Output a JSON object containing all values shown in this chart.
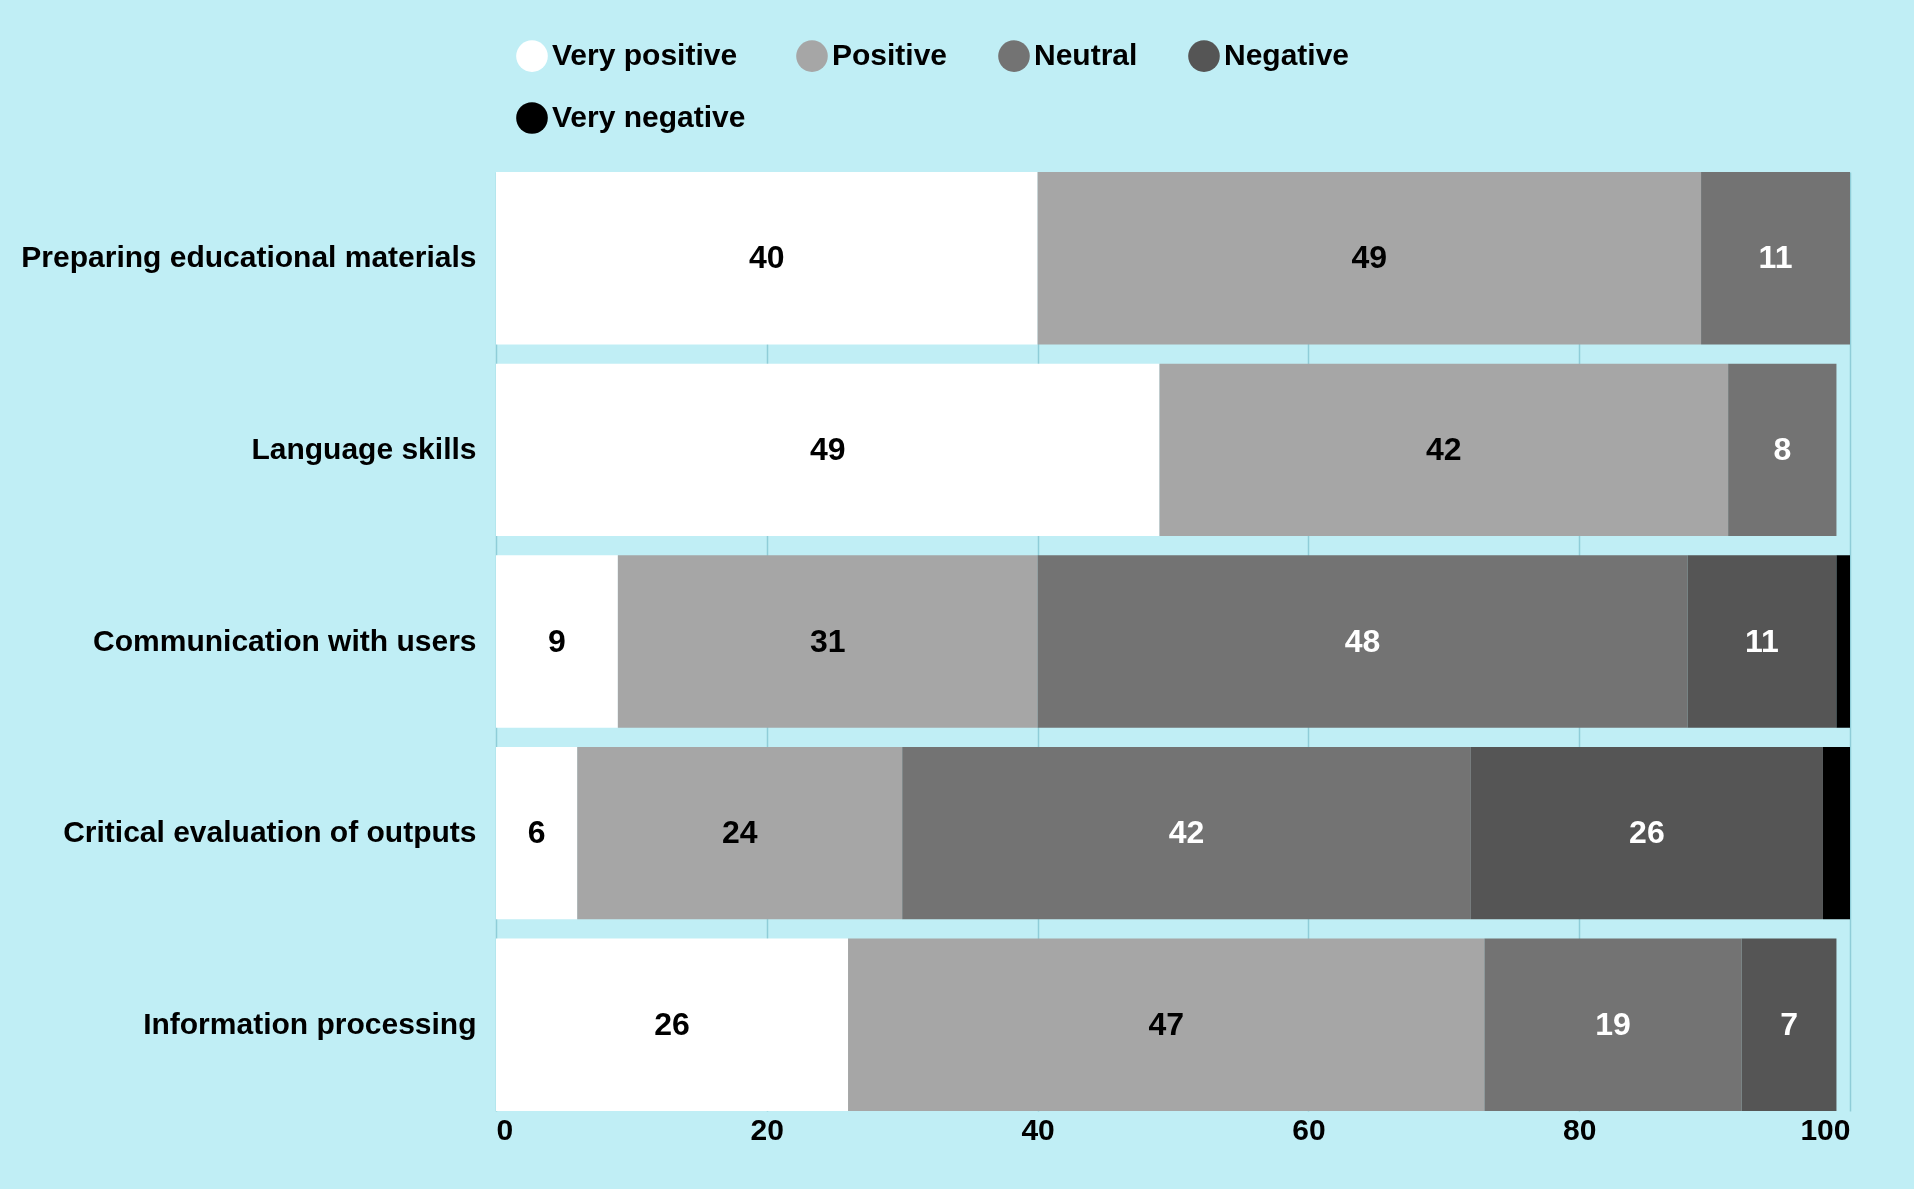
{
  "chart_data": {
    "type": "bar",
    "orientation": "horizontal",
    "stacked": true,
    "categories": [
      "Preparing educational materials",
      "Language skills",
      "Communication with users",
      "Critical evaluation of outputs",
      "Information processing"
    ],
    "series": [
      {
        "name": "Very positive",
        "color": "#ffffff",
        "values": [
          40,
          49,
          9,
          6,
          26
        ],
        "value_labels": [
          "40",
          "49",
          "9",
          "6",
          "26"
        ]
      },
      {
        "name": "Positive",
        "color": "#a6a6a6",
        "values": [
          49,
          42,
          31,
          24,
          47
        ],
        "value_labels": [
          "49",
          "42",
          "31",
          "24",
          "47"
        ]
      },
      {
        "name": "Neutral",
        "color": "#737373",
        "values": [
          11,
          8,
          48,
          42,
          19
        ],
        "value_labels": [
          "11",
          "8",
          "48",
          "42",
          "19"
        ]
      },
      {
        "name": "Negative",
        "color": "#555555",
        "values": [
          null,
          null,
          11,
          26,
          7
        ],
        "value_labels": [
          null,
          null,
          "11",
          "26",
          "7"
        ]
      },
      {
        "name": "Very negative",
        "color": "#000000",
        "values": [
          null,
          null,
          1,
          2,
          null
        ],
        "value_labels": [
          null,
          null,
          null,
          null,
          null
        ]
      }
    ],
    "xlim": [
      0,
      100
    ],
    "xticks": [
      0,
      20,
      40,
      60,
      80,
      100
    ],
    "grid": "x",
    "legend": "top"
  }
}
